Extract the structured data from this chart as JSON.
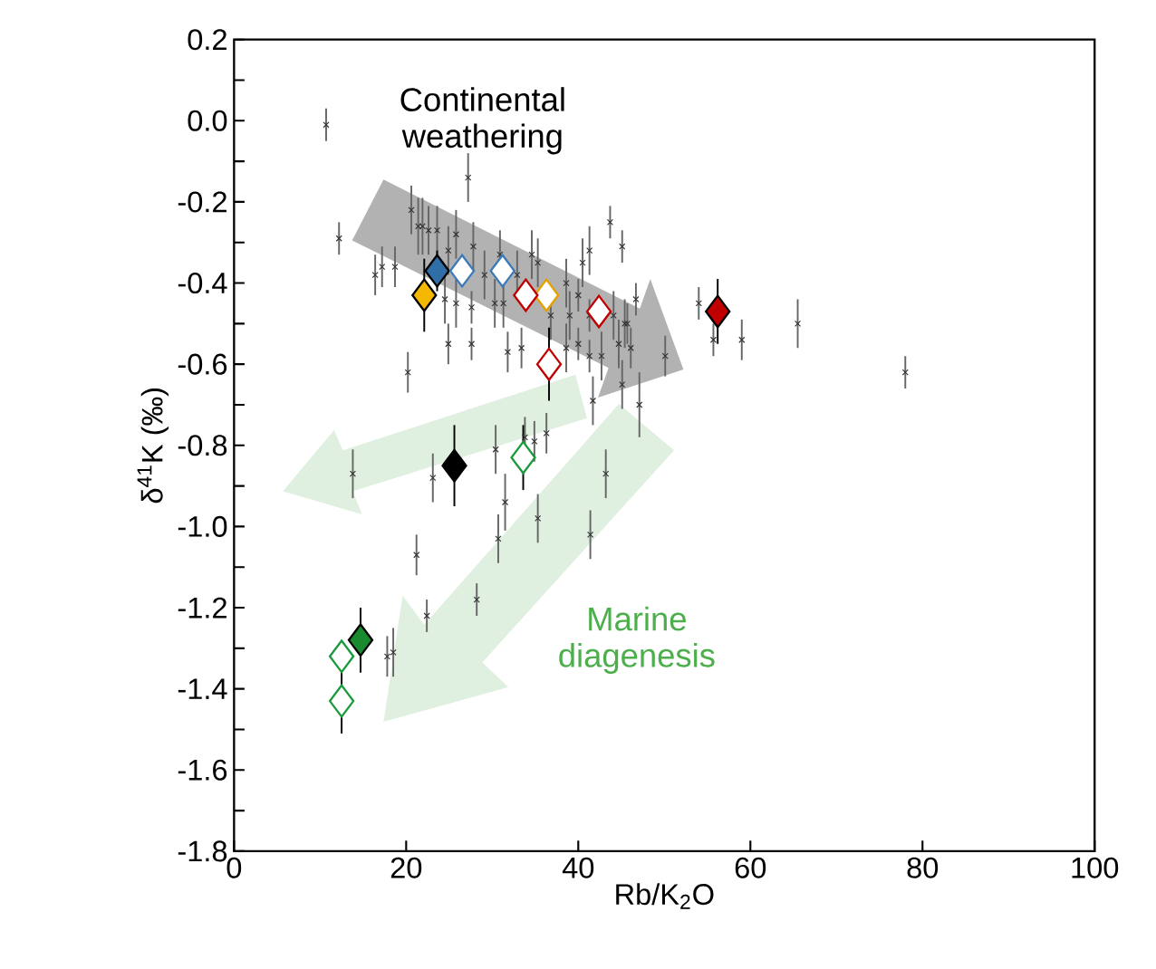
{
  "chart_data": {
    "type": "scatter",
    "xlabel": "Rb/K$_{2}$O",
    "ylabel": "δ$^{41}$K (‰)",
    "xlim": [
      0,
      100
    ],
    "ylim": [
      -1.8,
      0.2
    ],
    "xticks": [
      0,
      20,
      40,
      60,
      80,
      100
    ],
    "yticks": [
      {
        "value": -1.8,
        "label": "-1.8"
      },
      {
        "value": -1.7,
        "label": null
      },
      {
        "value": -1.6,
        "label": "-1.6"
      },
      {
        "value": -1.5,
        "label": null
      },
      {
        "value": -1.4,
        "label": "-1.4"
      },
      {
        "value": -1.3,
        "label": null
      },
      {
        "value": -1.2,
        "label": "-1.2"
      },
      {
        "value": -1.1,
        "label": null
      },
      {
        "value": -1.0,
        "label": "-1.0"
      },
      {
        "value": -0.9,
        "label": null
      },
      {
        "value": -0.8,
        "label": "-0.8"
      },
      {
        "value": -0.7,
        "label": null
      },
      {
        "value": -0.6,
        "label": "-0.6"
      },
      {
        "value": -0.5,
        "label": null
      },
      {
        "value": -0.4,
        "label": "-0.4"
      },
      {
        "value": -0.3,
        "label": null
      },
      {
        "value": -0.2,
        "label": "-0.2"
      },
      {
        "value": -0.1,
        "label": null
      },
      {
        "value": 0.0,
        "label": "0.0"
      },
      {
        "value": 0.1,
        "label": null
      },
      {
        "value": 0.2,
        "label": "0.2"
      }
    ],
    "grid": false,
    "annotations": [
      "Continental weathering",
      "Marine diagenesis"
    ],
    "series": [
      {
        "marker": "cross",
        "color": "#333333",
        "x": [
          10.7,
          12.2,
          27.2,
          20.6,
          21.4,
          21.9,
          22.6,
          23.6,
          25.8,
          16.4,
          17.2,
          18.7,
          24.9,
          27.8,
          29.1,
          30.9,
          34.6,
          35.3,
          41.3,
          43.7,
          45.1,
          40.5,
          46.7,
          38.6,
          40.0,
          24.5,
          25.8,
          27.6,
          30.3,
          31.3,
          32.9,
          36.8,
          39.0,
          41.3,
          44.1,
          45.4,
          54.0,
          55.7,
          59.0,
          65.5,
          78.0,
          45.7,
          46.1,
          50.1,
          45.1,
          47.1,
          20.2,
          24.9,
          27.6,
          31.8,
          33.4,
          38.6,
          40.0,
          41.3,
          42.7,
          44.7,
          41.7,
          36.3,
          34.9,
          33.8,
          30.4,
          13.8,
          23.1,
          43.2,
          31.5,
          35.3,
          30.7,
          41.4,
          21.2,
          28.2,
          22.4,
          17.8,
          18.5
        ],
        "values": [
          -0.01,
          -0.29,
          -0.14,
          -0.22,
          -0.26,
          -0.26,
          -0.27,
          -0.27,
          -0.28,
          -0.38,
          -0.36,
          -0.36,
          -0.32,
          -0.31,
          -0.38,
          -0.33,
          -0.33,
          -0.35,
          -0.32,
          -0.25,
          -0.31,
          -0.35,
          -0.44,
          -0.4,
          -0.43,
          -0.44,
          -0.45,
          -0.46,
          -0.45,
          -0.45,
          -0.38,
          -0.48,
          -0.48,
          -0.48,
          -0.48,
          -0.5,
          -0.45,
          -0.54,
          -0.54,
          -0.5,
          -0.62,
          -0.5,
          -0.56,
          -0.58,
          -0.65,
          -0.7,
          -0.62,
          -0.55,
          -0.55,
          -0.57,
          -0.56,
          -0.56,
          -0.55,
          -0.58,
          -0.58,
          -0.55,
          -0.69,
          -0.77,
          -0.79,
          -0.78,
          -0.81,
          -0.87,
          -0.88,
          -0.87,
          -0.94,
          -0.98,
          -1.03,
          -1.02,
          -1.07,
          -1.18,
          -1.22,
          -1.32,
          -1.31
        ],
        "errors": [
          0.04,
          0.04,
          0.06,
          0.06,
          0.07,
          0.07,
          0.06,
          0.06,
          0.06,
          0.05,
          0.05,
          0.05,
          0.06,
          0.06,
          0.06,
          0.06,
          0.06,
          0.06,
          0.06,
          0.04,
          0.04,
          0.06,
          0.04,
          0.06,
          0.04,
          0.06,
          0.06,
          0.04,
          0.06,
          0.06,
          0.06,
          0.06,
          0.06,
          0.04,
          0.06,
          0.06,
          0.04,
          0.04,
          0.05,
          0.06,
          0.04,
          0.05,
          0.05,
          0.05,
          0.06,
          0.08,
          0.05,
          0.05,
          0.04,
          0.05,
          0.05,
          0.06,
          0.04,
          0.04,
          0.06,
          0.06,
          0.06,
          0.05,
          0.05,
          0.05,
          0.06,
          0.06,
          0.06,
          0.06,
          0.07,
          0.06,
          0.06,
          0.06,
          0.05,
          0.04,
          0.04,
          0.05,
          0.06
        ]
      },
      {
        "marker": "diamond",
        "color": "#2f6ea6",
        "x": [
          23.6
        ],
        "values": [
          -0.37
        ],
        "errors": [
          0.05
        ]
      },
      {
        "marker": "diamond",
        "color": "#f5b800",
        "x": [
          22.1
        ],
        "values": [
          -0.43
        ],
        "errors": [
          0.09
        ]
      },
      {
        "marker": "diamond",
        "color": "#c00000",
        "x": [
          56.2
        ],
        "values": [
          -0.47
        ],
        "errors": [
          0.08
        ]
      },
      {
        "marker": "diamond",
        "color": "#000000",
        "x": [
          25.6
        ],
        "values": [
          -0.85
        ],
        "errors": [
          0.1
        ]
      },
      {
        "marker": "diamond",
        "color": "#1a8a2e",
        "x": [
          14.7
        ],
        "values": [
          -1.28
        ],
        "errors": [
          0.08
        ]
      },
      {
        "marker": "diamond",
        "color": "#3a7ab8",
        "x": [
          26.5,
          31.2
        ],
        "values": [
          -0.37,
          -0.37
        ]
      },
      {
        "marker": "diamond",
        "color": "#e6a000",
        "x": [
          36.3
        ],
        "values": [
          -0.43
        ]
      },
      {
        "marker": "diamond",
        "color": "#c00000",
        "x": [
          33.9,
          42.4,
          36.6
        ],
        "values": [
          -0.43,
          -0.47,
          -0.6
        ],
        "errors": [
          null,
          null,
          0.09
        ]
      },
      {
        "marker": "diamond",
        "color": "#1a9a3a",
        "x": [
          33.6,
          12.5,
          12.5
        ],
        "values": [
          -0.83,
          -1.32,
          -1.43
        ],
        "errors": [
          0.08,
          null,
          0.08
        ]
      }
    ]
  }
}
